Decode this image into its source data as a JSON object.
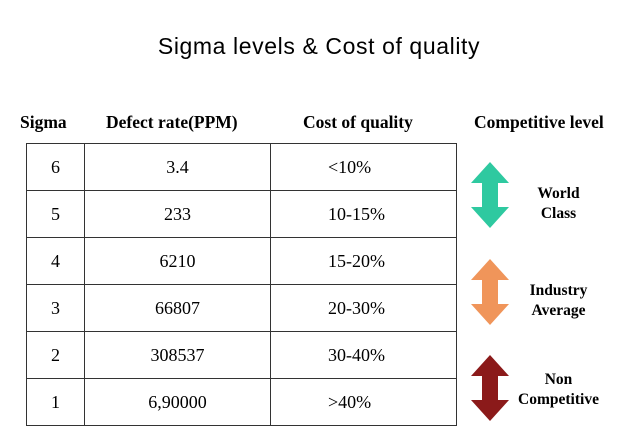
{
  "title": "Sigma levels & Cost of quality",
  "headers": {
    "sigma": "Sigma",
    "defect_rate": "Defect rate(PPM)",
    "cost": "Cost of quality",
    "competitive": "Competitive level"
  },
  "rows": [
    {
      "sigma": "6",
      "defect": "3.4",
      "cost": "<10%"
    },
    {
      "sigma": "5",
      "defect": "233",
      "cost": "10-15%"
    },
    {
      "sigma": "4",
      "defect": "6210",
      "cost": "15-20%"
    },
    {
      "sigma": "3",
      "defect": "66807",
      "cost": "20-30%"
    },
    {
      "sigma": "2",
      "defect": "308537",
      "cost": "30-40%"
    },
    {
      "sigma": "1",
      "defect": "6,90000",
      "cost": ">40%"
    }
  ],
  "levels": [
    {
      "line1": "World",
      "line2": "Class",
      "color": "#2ec9a0",
      "icon": "double-arrow-icon"
    },
    {
      "line1": "Industry",
      "line2": "Average",
      "color": "#f0955a",
      "icon": "double-arrow-icon"
    },
    {
      "line1": "Non",
      "line2": "Competitive",
      "color": "#8b1a1a",
      "icon": "double-arrow-icon"
    }
  ]
}
